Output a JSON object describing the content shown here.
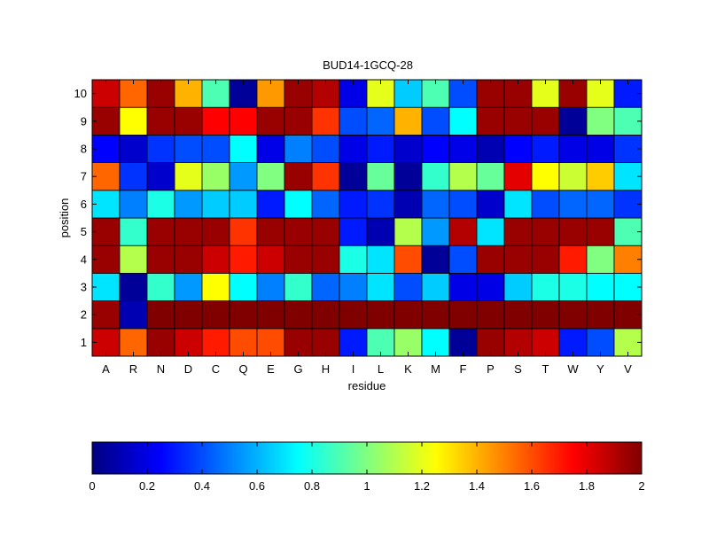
{
  "chart_data": {
    "type": "heatmap",
    "title": "BUD14-1GCQ-28",
    "xlabel": "residue",
    "ylabel": "position",
    "x_categories": [
      "A",
      "R",
      "N",
      "D",
      "C",
      "Q",
      "E",
      "G",
      "H",
      "I",
      "L",
      "K",
      "M",
      "F",
      "P",
      "S",
      "T",
      "W",
      "Y",
      "V"
    ],
    "y_categories": [
      "1",
      "2",
      "3",
      "4",
      "5",
      "6",
      "7",
      "8",
      "9",
      "10"
    ],
    "colormap": "jet",
    "clim": [
      0,
      2
    ],
    "grid": true,
    "colorbar": {
      "placement": "bottom",
      "ticks": [
        0,
        0.2,
        0.4,
        0.6,
        0.8,
        1,
        1.2,
        1.4,
        1.6,
        1.8,
        2
      ],
      "tick_labels": [
        "0",
        "0.2",
        "0.4",
        "0.6",
        "0.8",
        "1",
        "1.2",
        "1.4",
        "1.6",
        "1.8",
        "2"
      ]
    },
    "values": [
      [
        1.85,
        1.55,
        1.95,
        1.85,
        1.7,
        1.6,
        1.6,
        1.95,
        1.95,
        0.3,
        0.9,
        1.05,
        0.75,
        0.05,
        1.95,
        1.9,
        1.85,
        0.3,
        0.4,
        1.1
      ],
      [
        1.95,
        0.1,
        2.0,
        2.0,
        2.0,
        2.0,
        2.0,
        2.0,
        2.0,
        2.0,
        2.0,
        2.0,
        2.0,
        2.0,
        2.0,
        2.0,
        2.0,
        2.0,
        2.0,
        2.0
      ],
      [
        0.7,
        0.05,
        0.85,
        0.55,
        1.25,
        0.75,
        0.5,
        0.85,
        0.45,
        0.5,
        0.7,
        0.4,
        0.65,
        0.2,
        0.2,
        0.65,
        0.8,
        0.8,
        0.75,
        0.75
      ],
      [
        1.95,
        1.1,
        1.95,
        1.95,
        1.85,
        1.7,
        1.85,
        1.95,
        1.95,
        0.8,
        0.7,
        1.6,
        0.05,
        0.4,
        1.95,
        1.95,
        1.95,
        1.7,
        1.0,
        1.5
      ],
      [
        1.95,
        0.85,
        1.95,
        1.95,
        1.95,
        1.65,
        1.95,
        1.95,
        1.95,
        0.3,
        0.1,
        1.1,
        0.55,
        1.9,
        0.7,
        1.95,
        1.95,
        1.95,
        1.95,
        0.9
      ],
      [
        0.7,
        0.5,
        0.8,
        0.55,
        0.65,
        0.65,
        0.3,
        0.75,
        0.45,
        0.3,
        0.35,
        0.1,
        0.45,
        0.4,
        0.15,
        0.7,
        0.4,
        0.45,
        0.45,
        0.35
      ],
      [
        1.55,
        0.35,
        0.15,
        1.2,
        1.05,
        0.55,
        1.0,
        1.95,
        1.65,
        0.05,
        0.95,
        0.05,
        0.85,
        1.1,
        0.95,
        1.8,
        1.25,
        1.15,
        1.35,
        0.7
      ],
      [
        0.25,
        0.15,
        0.35,
        0.4,
        0.4,
        0.75,
        0.2,
        0.5,
        0.4,
        0.2,
        0.3,
        0.15,
        0.25,
        0.2,
        0.1,
        0.25,
        0.3,
        0.2,
        0.2,
        0.35
      ],
      [
        1.95,
        1.25,
        1.95,
        1.95,
        1.75,
        1.75,
        1.95,
        1.95,
        1.65,
        0.4,
        0.45,
        1.4,
        0.4,
        0.75,
        1.95,
        1.95,
        1.95,
        0.05,
        1.0,
        0.9
      ],
      [
        1.85,
        1.55,
        1.95,
        1.4,
        0.9,
        0.05,
        1.45,
        1.95,
        1.9,
        0.2,
        1.2,
        0.65,
        0.9,
        0.4,
        1.95,
        1.95,
        1.2,
        1.95,
        1.2,
        0.3
      ]
    ]
  }
}
